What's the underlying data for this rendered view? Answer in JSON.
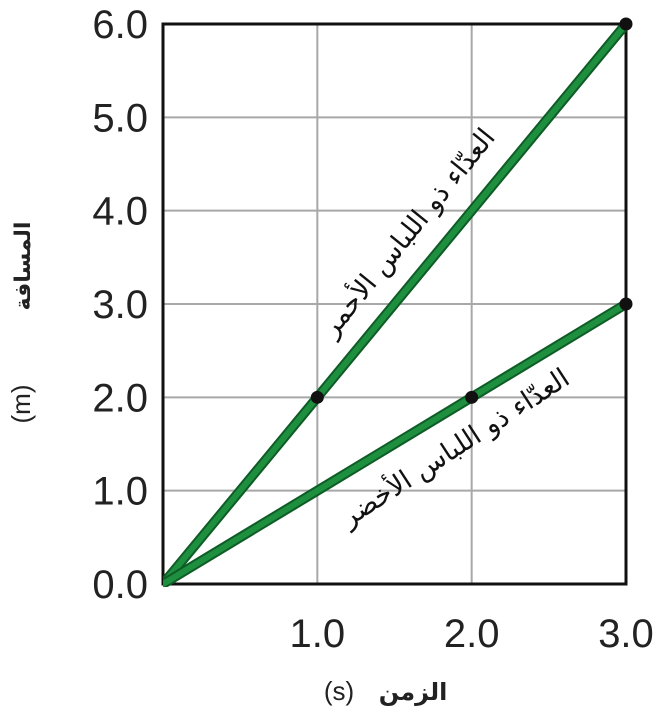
{
  "chart_data": {
    "type": "line",
    "title": "",
    "xlabel": "الزمن",
    "xunit": "(s)",
    "ylabel": "المسافة",
    "yunit": "(m)",
    "xlim": [
      0,
      3
    ],
    "ylim": [
      0,
      6
    ],
    "x_ticks": [
      "1.0",
      "2.0",
      "3.0"
    ],
    "y_ticks": [
      "0.0",
      "1.0",
      "2.0",
      "3.0",
      "4.0",
      "5.0",
      "6.0"
    ],
    "grid": true,
    "line_color": "#1e8f3e",
    "series": [
      {
        "name": "العدّاء ذو اللباس الأحمر",
        "x": [
          0,
          1,
          2,
          3
        ],
        "y": [
          0,
          2,
          4,
          6
        ],
        "markers": [
          [
            1,
            2
          ],
          [
            3,
            6
          ]
        ]
      },
      {
        "name": "العدّاء ذو اللباس الأخضر",
        "x": [
          0,
          1,
          2,
          3
        ],
        "y": [
          0,
          1,
          2,
          3
        ],
        "markers": [
          [
            2,
            2
          ],
          [
            3,
            3
          ]
        ]
      }
    ]
  }
}
